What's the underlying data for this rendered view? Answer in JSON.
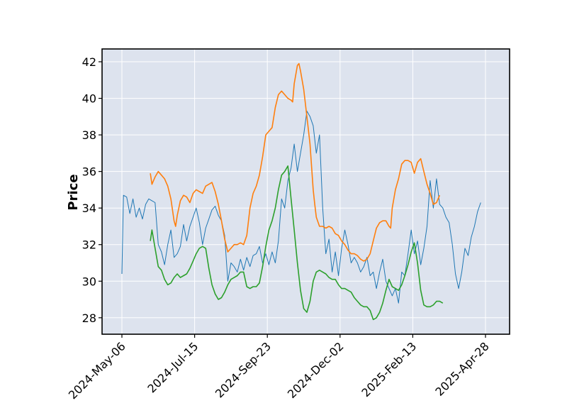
{
  "chart_data": {
    "type": "line",
    "title": "",
    "xlabel": "",
    "ylabel": "Price",
    "x_tick_labels": [
      "2024-May-06",
      "2024-Jul-15",
      "2024-Sep-23",
      "2024-Dec-02",
      "2025-Feb-13",
      "2025-Apr-28"
    ],
    "y_ticks": [
      28,
      30,
      32,
      34,
      36,
      38,
      40,
      42
    ],
    "ylim": [
      27.1,
      42.7
    ],
    "grid": true,
    "legend": "none",
    "colors": {
      "plot_bg": "#dde3ee",
      "grid": "#ffffff",
      "series": [
        "#1f77b4",
        "#ff7f0e",
        "#2ca02c"
      ]
    },
    "series": [
      {
        "points": [
          [
            0,
            30.4
          ],
          [
            1,
            34.7
          ],
          [
            3,
            34.6
          ],
          [
            5,
            33.7
          ],
          [
            7,
            34.5
          ],
          [
            9,
            33.5
          ],
          [
            11,
            34.0
          ],
          [
            13,
            33.4
          ],
          [
            15,
            34.2
          ],
          [
            17,
            34.5
          ],
          [
            19,
            34.4
          ],
          [
            21,
            34.3
          ],
          [
            23,
            32.0
          ],
          [
            25,
            31.6
          ],
          [
            27,
            30.9
          ],
          [
            29,
            32.0
          ],
          [
            31,
            32.8
          ],
          [
            33,
            31.3
          ],
          [
            35,
            31.5
          ],
          [
            37,
            31.9
          ],
          [
            39,
            33.1
          ],
          [
            41,
            32.2
          ],
          [
            43,
            33.0
          ],
          [
            45,
            33.5
          ],
          [
            47,
            34.0
          ],
          [
            49,
            33.2
          ],
          [
            51,
            32.0
          ],
          [
            53,
            32.9
          ],
          [
            55,
            33.4
          ],
          [
            57,
            33.9
          ],
          [
            59,
            34.1
          ],
          [
            61,
            33.6
          ],
          [
            63,
            33.3
          ],
          [
            65,
            32.5
          ],
          [
            67,
            30.0
          ],
          [
            69,
            31.0
          ],
          [
            71,
            30.8
          ],
          [
            73,
            30.5
          ],
          [
            75,
            31.2
          ],
          [
            77,
            30.6
          ],
          [
            79,
            31.3
          ],
          [
            81,
            30.8
          ],
          [
            83,
            31.4
          ],
          [
            85,
            31.5
          ],
          [
            87,
            31.9
          ],
          [
            89,
            31.0
          ],
          [
            91,
            31.5
          ],
          [
            93,
            30.9
          ],
          [
            95,
            31.6
          ],
          [
            97,
            31.0
          ],
          [
            99,
            32.2
          ],
          [
            101,
            34.5
          ],
          [
            103,
            34.0
          ],
          [
            105,
            35.5
          ],
          [
            107,
            36.2
          ],
          [
            109,
            37.5
          ],
          [
            111,
            36.0
          ],
          [
            113,
            37.0
          ],
          [
            115,
            38.0
          ],
          [
            117,
            39.3
          ],
          [
            119,
            39.0
          ],
          [
            121,
            38.5
          ],
          [
            123,
            37.0
          ],
          [
            125,
            38.0
          ],
          [
            127,
            34.0
          ],
          [
            129,
            31.5
          ],
          [
            131,
            32.3
          ],
          [
            133,
            30.5
          ],
          [
            135,
            31.6
          ],
          [
            137,
            30.3
          ],
          [
            139,
            31.8
          ],
          [
            141,
            32.8
          ],
          [
            143,
            32.0
          ],
          [
            145,
            31.0
          ],
          [
            147,
            31.3
          ],
          [
            149,
            31.0
          ],
          [
            151,
            30.5
          ],
          [
            153,
            30.8
          ],
          [
            155,
            31.3
          ],
          [
            157,
            30.3
          ],
          [
            159,
            30.5
          ],
          [
            161,
            29.6
          ],
          [
            163,
            30.5
          ],
          [
            165,
            31.2
          ],
          [
            167,
            30.0
          ],
          [
            169,
            29.6
          ],
          [
            171,
            29.2
          ],
          [
            173,
            29.6
          ],
          [
            175,
            28.8
          ],
          [
            177,
            30.5
          ],
          [
            179,
            30.3
          ],
          [
            181,
            31.5
          ],
          [
            183,
            32.8
          ],
          [
            185,
            31.5
          ],
          [
            187,
            32.2
          ],
          [
            189,
            30.9
          ],
          [
            191,
            31.8
          ],
          [
            193,
            33.0
          ],
          [
            195,
            35.5
          ],
          [
            197,
            34.0
          ],
          [
            199,
            35.6
          ],
          [
            201,
            34.2
          ],
          [
            203,
            34.0
          ],
          [
            205,
            33.5
          ],
          [
            207,
            33.2
          ],
          [
            209,
            32.0
          ],
          [
            211,
            30.4
          ],
          [
            213,
            29.6
          ],
          [
            215,
            30.5
          ],
          [
            217,
            31.8
          ],
          [
            219,
            31.4
          ],
          [
            221,
            32.4
          ],
          [
            223,
            33.0
          ],
          [
            225,
            33.8
          ],
          [
            227,
            34.3
          ]
        ]
      },
      {
        "points": [
          [
            18,
            35.9
          ],
          [
            19,
            35.3
          ],
          [
            21,
            35.7
          ],
          [
            23,
            36.0
          ],
          [
            25,
            35.8
          ],
          [
            27,
            35.6
          ],
          [
            29,
            35.2
          ],
          [
            31,
            34.5
          ],
          [
            33,
            33.3
          ],
          [
            34,
            33.0
          ],
          [
            35,
            33.6
          ],
          [
            37,
            34.4
          ],
          [
            39,
            34.7
          ],
          [
            41,
            34.6
          ],
          [
            43,
            34.3
          ],
          [
            45,
            34.8
          ],
          [
            47,
            35.0
          ],
          [
            49,
            34.9
          ],
          [
            51,
            34.8
          ],
          [
            53,
            35.2
          ],
          [
            55,
            35.3
          ],
          [
            57,
            35.4
          ],
          [
            59,
            34.9
          ],
          [
            61,
            34.2
          ],
          [
            63,
            33.3
          ],
          [
            65,
            32.3
          ],
          [
            67,
            31.6
          ],
          [
            69,
            31.8
          ],
          [
            71,
            32.0
          ],
          [
            73,
            32.0
          ],
          [
            75,
            32.1
          ],
          [
            77,
            32.0
          ],
          [
            79,
            32.5
          ],
          [
            81,
            34.0
          ],
          [
            83,
            34.8
          ],
          [
            85,
            35.2
          ],
          [
            87,
            35.8
          ],
          [
            89,
            36.8
          ],
          [
            91,
            38.0
          ],
          [
            93,
            38.2
          ],
          [
            95,
            38.4
          ],
          [
            97,
            39.5
          ],
          [
            99,
            40.2
          ],
          [
            101,
            40.4
          ],
          [
            103,
            40.2
          ],
          [
            105,
            40.0
          ],
          [
            107,
            39.9
          ],
          [
            108,
            39.8
          ],
          [
            109,
            40.8
          ],
          [
            111,
            41.8
          ],
          [
            112,
            41.9
          ],
          [
            113,
            41.5
          ],
          [
            115,
            40.5
          ],
          [
            117,
            39.0
          ],
          [
            119,
            37.5
          ],
          [
            121,
            35.0
          ],
          [
            122,
            34.2
          ],
          [
            123,
            33.5
          ],
          [
            125,
            33.0
          ],
          [
            127,
            33.0
          ],
          [
            129,
            32.9
          ],
          [
            131,
            33.0
          ],
          [
            133,
            32.9
          ],
          [
            135,
            32.6
          ],
          [
            137,
            32.5
          ],
          [
            139,
            32.2
          ],
          [
            141,
            32.0
          ],
          [
            143,
            31.7
          ],
          [
            145,
            31.5
          ],
          [
            147,
            31.5
          ],
          [
            149,
            31.4
          ],
          [
            151,
            31.2
          ],
          [
            153,
            31.1
          ],
          [
            155,
            31.2
          ],
          [
            157,
            31.5
          ],
          [
            159,
            32.2
          ],
          [
            161,
            32.9
          ],
          [
            163,
            33.2
          ],
          [
            165,
            33.3
          ],
          [
            167,
            33.3
          ],
          [
            169,
            33.0
          ],
          [
            170,
            32.9
          ],
          [
            171,
            34.0
          ],
          [
            173,
            35.0
          ],
          [
            175,
            35.6
          ],
          [
            177,
            36.4
          ],
          [
            179,
            36.6
          ],
          [
            181,
            36.6
          ],
          [
            183,
            36.5
          ],
          [
            185,
            35.9
          ],
          [
            187,
            36.5
          ],
          [
            189,
            36.7
          ],
          [
            191,
            36.0
          ],
          [
            193,
            35.3
          ],
          [
            195,
            34.8
          ],
          [
            197,
            34.2
          ],
          [
            199,
            34.3
          ],
          [
            201,
            34.7
          ]
        ]
      },
      {
        "points": [
          [
            18,
            32.2
          ],
          [
            19,
            32.8
          ],
          [
            21,
            31.8
          ],
          [
            23,
            30.8
          ],
          [
            25,
            30.6
          ],
          [
            27,
            30.1
          ],
          [
            29,
            29.8
          ],
          [
            31,
            29.9
          ],
          [
            33,
            30.2
          ],
          [
            35,
            30.4
          ],
          [
            37,
            30.2
          ],
          [
            39,
            30.3
          ],
          [
            41,
            30.4
          ],
          [
            43,
            30.7
          ],
          [
            45,
            31.1
          ],
          [
            47,
            31.5
          ],
          [
            49,
            31.8
          ],
          [
            51,
            31.9
          ],
          [
            53,
            31.8
          ],
          [
            55,
            30.7
          ],
          [
            57,
            29.8
          ],
          [
            59,
            29.3
          ],
          [
            61,
            29.0
          ],
          [
            63,
            29.1
          ],
          [
            65,
            29.4
          ],
          [
            67,
            29.8
          ],
          [
            69,
            30.1
          ],
          [
            71,
            30.2
          ],
          [
            73,
            30.3
          ],
          [
            75,
            30.5
          ],
          [
            77,
            30.5
          ],
          [
            79,
            29.7
          ],
          [
            81,
            29.6
          ],
          [
            83,
            29.7
          ],
          [
            85,
            29.7
          ],
          [
            87,
            29.9
          ],
          [
            89,
            30.8
          ],
          [
            91,
            31.9
          ],
          [
            93,
            32.8
          ],
          [
            95,
            33.3
          ],
          [
            97,
            34.0
          ],
          [
            99,
            35.0
          ],
          [
            101,
            35.8
          ],
          [
            103,
            36.0
          ],
          [
            105,
            36.3
          ],
          [
            107,
            34.5
          ],
          [
            109,
            32.8
          ],
          [
            111,
            31.0
          ],
          [
            113,
            29.5
          ],
          [
            115,
            28.5
          ],
          [
            117,
            28.3
          ],
          [
            119,
            28.9
          ],
          [
            121,
            30.0
          ],
          [
            123,
            30.5
          ],
          [
            125,
            30.6
          ],
          [
            127,
            30.5
          ],
          [
            129,
            30.4
          ],
          [
            131,
            30.2
          ],
          [
            133,
            30.1
          ],
          [
            135,
            30.1
          ],
          [
            137,
            29.8
          ],
          [
            139,
            29.6
          ],
          [
            141,
            29.6
          ],
          [
            143,
            29.5
          ],
          [
            145,
            29.4
          ],
          [
            147,
            29.1
          ],
          [
            149,
            28.9
          ],
          [
            151,
            28.7
          ],
          [
            153,
            28.6
          ],
          [
            155,
            28.6
          ],
          [
            157,
            28.4
          ],
          [
            159,
            27.9
          ],
          [
            161,
            28.0
          ],
          [
            163,
            28.3
          ],
          [
            165,
            28.8
          ],
          [
            167,
            29.5
          ],
          [
            169,
            30.1
          ],
          [
            171,
            29.7
          ],
          [
            173,
            29.6
          ],
          [
            175,
            29.5
          ],
          [
            177,
            29.8
          ],
          [
            179,
            30.3
          ],
          [
            181,
            30.9
          ],
          [
            183,
            31.6
          ],
          [
            185,
            32.1
          ],
          [
            187,
            31.0
          ],
          [
            189,
            29.5
          ],
          [
            191,
            28.7
          ],
          [
            193,
            28.6
          ],
          [
            195,
            28.6
          ],
          [
            197,
            28.7
          ],
          [
            199,
            28.9
          ],
          [
            201,
            28.9
          ],
          [
            203,
            28.8
          ]
        ]
      }
    ]
  }
}
